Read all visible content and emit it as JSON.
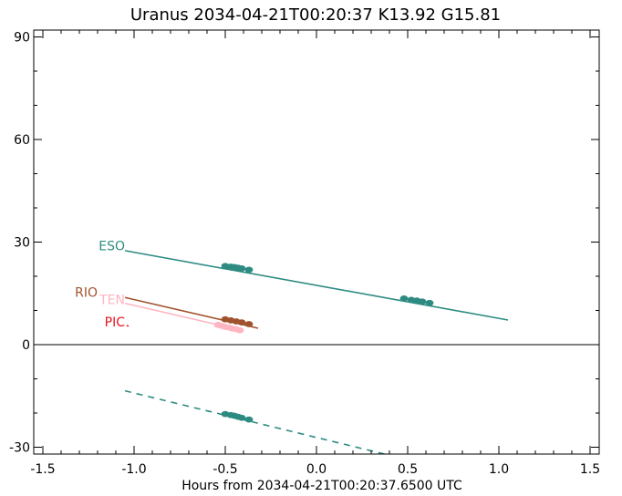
{
  "chart_data": {
    "type": "line",
    "title": "Uranus 2034-04-21T00:20:37  K13.92  G15.81",
    "xlabel": "Hours from 2034-04-21T00:20:37.6500 UTC",
    "ylabel": "",
    "xlim": [
      -1.55,
      1.55
    ],
    "ylim": [
      -32,
      92
    ],
    "xticks": [
      -1.5,
      -1.0,
      -0.5,
      0.0,
      0.5,
      1.0,
      1.5
    ],
    "xtick_labels": [
      "-1.5",
      "-1.0",
      "-0.5",
      "0.0",
      "0.5",
      "1.0",
      "1.5"
    ],
    "yticks": [
      -30,
      0,
      30,
      60,
      90
    ],
    "ytick_labels": [
      "-30",
      "0",
      "30",
      "60",
      "90"
    ],
    "zero_line": true,
    "grid": false,
    "series": [
      {
        "name": "ESO",
        "color": "#2e8b82",
        "dash": false,
        "x": [
          -1.05,
          1.05
        ],
        "y": [
          27.5,
          7.2
        ],
        "points": [
          {
            "x": -0.5,
            "y": 23.0
          },
          {
            "x": -0.47,
            "y": 22.8
          },
          {
            "x": -0.45,
            "y": 22.7
          },
          {
            "x": -0.43,
            "y": 22.5
          },
          {
            "x": -0.41,
            "y": 22.3
          },
          {
            "x": -0.37,
            "y": 21.9
          },
          {
            "x": 0.48,
            "y": 13.5
          },
          {
            "x": 0.52,
            "y": 13.1
          },
          {
            "x": 0.55,
            "y": 12.9
          },
          {
            "x": 0.58,
            "y": 12.6
          },
          {
            "x": 0.62,
            "y": 12.2
          }
        ]
      },
      {
        "name": "ESO",
        "color": "#2e8b82",
        "dash": true,
        "x": [
          -1.05,
          0.45
        ],
        "y": [
          -13.5,
          -33.0
        ],
        "points": [
          {
            "x": -0.5,
            "y": -20.3
          },
          {
            "x": -0.47,
            "y": -20.6
          },
          {
            "x": -0.45,
            "y": -20.8
          },
          {
            "x": -0.43,
            "y": -21.1
          },
          {
            "x": -0.41,
            "y": -21.4
          },
          {
            "x": -0.37,
            "y": -21.9
          }
        ]
      },
      {
        "name": "RIO",
        "color": "#a0522d",
        "dash": false,
        "x": [
          -1.05,
          -0.32
        ],
        "y": [
          13.8,
          4.8
        ],
        "points": [
          {
            "x": -0.5,
            "y": 7.4
          },
          {
            "x": -0.47,
            "y": 7.1
          },
          {
            "x": -0.44,
            "y": 6.8
          },
          {
            "x": -0.41,
            "y": 6.5
          },
          {
            "x": -0.37,
            "y": 6.0
          }
        ]
      },
      {
        "name": "TEN",
        "color": "#ffb6c1",
        "dash": false,
        "x": [
          -1.05,
          -0.41
        ],
        "y": [
          12.1,
          4.2
        ],
        "points": [
          {
            "x": -0.54,
            "y": 5.8
          },
          {
            "x": -0.52,
            "y": 5.5
          },
          {
            "x": -0.5,
            "y": 5.2
          },
          {
            "x": -0.48,
            "y": 5.0
          },
          {
            "x": -0.46,
            "y": 4.7
          },
          {
            "x": -0.44,
            "y": 4.5
          },
          {
            "x": -0.42,
            "y": 4.2
          }
        ]
      },
      {
        "name": "PIC",
        "color": "#e8141e",
        "dash": false,
        "x": [
          -1.04,
          -1.03
        ],
        "y": [
          5.6,
          5.4
        ],
        "points": []
      }
    ],
    "labels": [
      {
        "text": "ESO",
        "color": "#2e8b82",
        "x": -1.05,
        "y": 29.0
      },
      {
        "text": "RIO",
        "color": "#a0522d",
        "x": -1.2,
        "y": 15.3
      },
      {
        "text": "TEN",
        "color": "#ffb6c1",
        "x": -1.05,
        "y": 13.2
      },
      {
        "text": "PIC",
        "color": "#e8141e",
        "x": -1.05,
        "y": 6.7
      }
    ]
  }
}
